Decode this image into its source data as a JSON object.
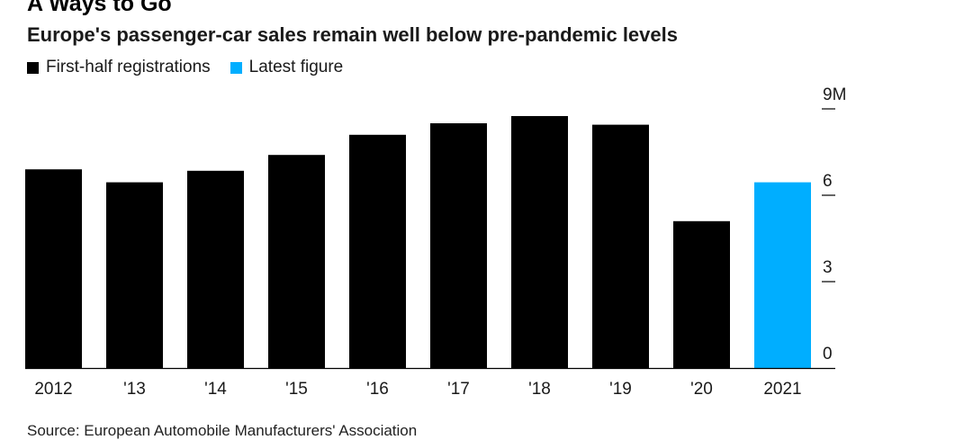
{
  "header": {
    "title": "A Ways to Go",
    "subtitle": "Europe's passenger-car sales remain well below pre-pandemic levels"
  },
  "legend": [
    {
      "label": "First-half registrations",
      "color": "#000000"
    },
    {
      "label": "Latest figure",
      "color": "#00aeff"
    }
  ],
  "chart_data": {
    "type": "bar",
    "categories": [
      "2012",
      "'13",
      "'14",
      "'15",
      "'16",
      "'17",
      "'18",
      "'19",
      "'20",
      "2021"
    ],
    "series": [
      {
        "name": "First-half registrations",
        "values": [
          6.9,
          6.45,
          6.85,
          7.4,
          8.1,
          8.5,
          8.75,
          8.45,
          5.1,
          null
        ]
      },
      {
        "name": "Latest figure",
        "values": [
          null,
          null,
          null,
          null,
          null,
          null,
          null,
          null,
          null,
          6.45
        ]
      }
    ],
    "ylim": [
      0,
      9
    ],
    "yticks": [
      {
        "value": 9,
        "label": "9M"
      },
      {
        "value": 6,
        "label": "6"
      },
      {
        "value": 3,
        "label": "3"
      },
      {
        "value": 0,
        "label": "0"
      }
    ],
    "y_axis_side": "right",
    "grid": false,
    "legend_position": "top-left"
  },
  "footer": {
    "source": "Source: European Automobile Manufacturers' Association"
  }
}
